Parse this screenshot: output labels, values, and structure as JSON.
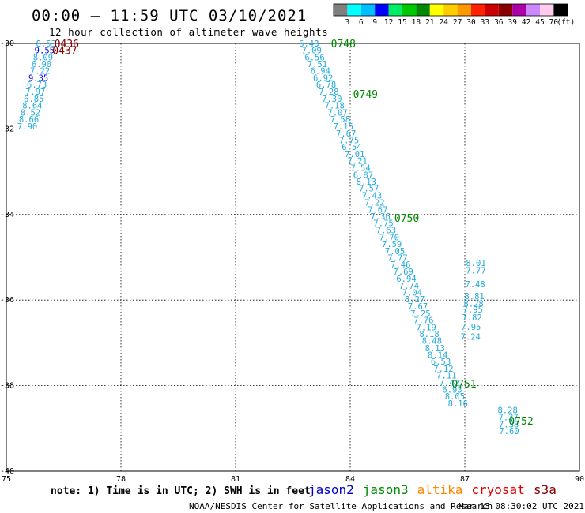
{
  "header": {
    "title": "00:00 – 11:59 UTC 03/10/2021",
    "subtitle": "12 hour collection of altimeter wave heights"
  },
  "footer": {
    "note": "note: 1) Time is in UTC; 2) SWH is in feet",
    "credit": "NOAA/NESDIS Center for Satellite Applications and Research",
    "generated": "Mar 13 08:30:02 UTC 2021"
  },
  "missions": [
    {
      "name": "jason2",
      "color": "#0000cc"
    },
    {
      "name": "jason3",
      "color": "#008800"
    },
    {
      "name": "altika",
      "color": "#ff8800"
    },
    {
      "name": "cryosat",
      "color": "#dd0000"
    },
    {
      "name": "s3a",
      "color": "#880000"
    }
  ],
  "colorbar": {
    "labels": [
      "3",
      "6",
      "9",
      "12",
      "15",
      "18",
      "21",
      "24",
      "27",
      "30",
      "33",
      "36",
      "39",
      "42",
      "45",
      "70"
    ],
    "unit": "(ft)",
    "colors": [
      "#7f7f7f",
      "#00ffff",
      "#00bfff",
      "#0000ff",
      "#00ee66",
      "#00c800",
      "#008800",
      "#ffff00",
      "#ffcc00",
      "#ff9900",
      "#ff2200",
      "#cc0000",
      "#880000",
      "#aa00aa",
      "#cc88ff",
      "#ffccee",
      "#000000"
    ]
  },
  "chart_data": {
    "type": "scatter",
    "title": "00:00 – 11:59 UTC 03/10/2021",
    "subtitle": "12 hour collection of altimeter wave heights",
    "xlim": [
      75,
      90
    ],
    "ylim": [
      -40,
      -30
    ],
    "xticks": [
      "75",
      "78",
      "81",
      "84",
      "87",
      "90"
    ],
    "yticks": [
      "-30",
      "-32",
      "-34",
      "-36",
      "-38",
      "-40"
    ],
    "grid": true,
    "value_unit": "ft",
    "tracks": [
      {
        "values": [
          {
            "x": 76.04,
            "y": -30.0,
            "v": "8.53",
            "c": "#22aadd"
          },
          {
            "x": 76.0,
            "y": -30.16,
            "v": "9.55",
            "c": "#0000ff"
          },
          {
            "x": 75.96,
            "y": -30.32,
            "v": "8.09",
            "c": "#22aadd"
          },
          {
            "x": 75.92,
            "y": -30.48,
            "v": "6.90",
            "c": "#22aadd"
          },
          {
            "x": 75.88,
            "y": -30.64,
            "v": "7.22",
            "c": "#22aadd"
          },
          {
            "x": 75.84,
            "y": -30.8,
            "v": "9.35",
            "c": "#0000ff"
          },
          {
            "x": 75.8,
            "y": -30.96,
            "v": "6.73",
            "c": "#22aadd"
          },
          {
            "x": 75.76,
            "y": -31.13,
            "v": "7.97",
            "c": "#22aadd"
          },
          {
            "x": 75.72,
            "y": -31.29,
            "v": "6.85",
            "c": "#22aadd"
          },
          {
            "x": 75.68,
            "y": -31.45,
            "v": "8.64",
            "c": "#22aadd"
          },
          {
            "x": 75.63,
            "y": -31.61,
            "v": "8.52",
            "c": "#22aadd"
          },
          {
            "x": 75.59,
            "y": -31.77,
            "v": "8.66",
            "c": "#22aadd"
          },
          {
            "x": 75.55,
            "y": -31.94,
            "v": "7.90",
            "c": "#22aadd"
          }
        ],
        "times": [
          {
            "x": 76.58,
            "y": -30.0,
            "t": "0436",
            "c": "#880000"
          },
          {
            "x": 76.53,
            "y": -30.16,
            "t": "0437",
            "c": "#880000"
          }
        ]
      },
      {
        "values": [
          {
            "x": 82.92,
            "y": -30.0,
            "v": "6.48",
            "c": "#22aadd"
          },
          {
            "x": 82.99,
            "y": -30.16,
            "v": "7.09",
            "c": "#22aadd"
          },
          {
            "x": 83.07,
            "y": -30.32,
            "v": "6.56",
            "c": "#22aadd"
          },
          {
            "x": 83.14,
            "y": -30.48,
            "v": "7.51",
            "c": "#22aadd"
          },
          {
            "x": 83.22,
            "y": -30.64,
            "v": "6.94",
            "c": "#22aadd"
          },
          {
            "x": 83.29,
            "y": -30.8,
            "v": "6.92",
            "c": "#22aadd"
          },
          {
            "x": 83.37,
            "y": -30.96,
            "v": "6.78",
            "c": "#22aadd"
          },
          {
            "x": 83.44,
            "y": -31.13,
            "v": "7.28",
            "c": "#22aadd"
          },
          {
            "x": 83.52,
            "y": -31.29,
            "v": "7.30",
            "c": "#22aadd"
          },
          {
            "x": 83.59,
            "y": -31.45,
            "v": "7.18",
            "c": "#22aadd"
          },
          {
            "x": 83.67,
            "y": -31.61,
            "v": "7.07",
            "c": "#22aadd"
          },
          {
            "x": 83.74,
            "y": -31.77,
            "v": "7.58",
            "c": "#22aadd"
          },
          {
            "x": 83.82,
            "y": -31.94,
            "v": "7.15",
            "c": "#22aadd"
          },
          {
            "x": 83.89,
            "y": -32.1,
            "v": "7.67",
            "c": "#22aadd"
          },
          {
            "x": 83.97,
            "y": -32.26,
            "v": "7.75",
            "c": "#22aadd"
          },
          {
            "x": 84.04,
            "y": -32.42,
            "v": "6.54",
            "c": "#22aadd"
          },
          {
            "x": 84.12,
            "y": -32.58,
            "v": "7.01",
            "c": "#22aadd"
          },
          {
            "x": 84.19,
            "y": -32.74,
            "v": "7.21",
            "c": "#22aadd"
          },
          {
            "x": 84.27,
            "y": -32.91,
            "v": "7.54",
            "c": "#22aadd"
          },
          {
            "x": 84.34,
            "y": -33.07,
            "v": "6.87",
            "c": "#22aadd"
          },
          {
            "x": 84.42,
            "y": -33.23,
            "v": "8.13",
            "c": "#22aadd"
          },
          {
            "x": 84.49,
            "y": -33.39,
            "v": "7.57",
            "c": "#22aadd"
          },
          {
            "x": 84.57,
            "y": -33.55,
            "v": "7.43",
            "c": "#22aadd"
          },
          {
            "x": 84.64,
            "y": -33.72,
            "v": "7.22",
            "c": "#22aadd"
          },
          {
            "x": 84.72,
            "y": -33.88,
            "v": "7.67",
            "c": "#22aadd"
          },
          {
            "x": 84.79,
            "y": -34.04,
            "v": "7.36",
            "c": "#22aadd"
          },
          {
            "x": 84.87,
            "y": -34.2,
            "v": "7.75",
            "c": "#22aadd"
          },
          {
            "x": 84.94,
            "y": -34.36,
            "v": "7.63",
            "c": "#22aadd"
          },
          {
            "x": 85.02,
            "y": -34.53,
            "v": "7.70",
            "c": "#22aadd"
          },
          {
            "x": 85.09,
            "y": -34.69,
            "v": "7.59",
            "c": "#22aadd"
          },
          {
            "x": 85.17,
            "y": -34.85,
            "v": "7.05",
            "c": "#22aadd"
          },
          {
            "x": 85.24,
            "y": -35.01,
            "v": "7.77",
            "c": "#22aadd"
          },
          {
            "x": 85.32,
            "y": -35.17,
            "v": "7.46",
            "c": "#22aadd"
          },
          {
            "x": 85.39,
            "y": -35.33,
            "v": "7.69",
            "c": "#22aadd"
          },
          {
            "x": 85.47,
            "y": -35.5,
            "v": "6.94",
            "c": "#22aadd"
          },
          {
            "x": 85.54,
            "y": -35.66,
            "v": "7.74",
            "c": "#22aadd"
          },
          {
            "x": 85.62,
            "y": -35.82,
            "v": "7.04",
            "c": "#22aadd"
          },
          {
            "x": 85.69,
            "y": -35.98,
            "v": "8.27",
            "c": "#22aadd"
          },
          {
            "x": 85.77,
            "y": -36.14,
            "v": "7.67",
            "c": "#22aadd"
          },
          {
            "x": 85.84,
            "y": -36.31,
            "v": "7.25",
            "c": "#22aadd"
          },
          {
            "x": 85.92,
            "y": -36.47,
            "v": "7.76",
            "c": "#22aadd"
          },
          {
            "x": 85.99,
            "y": -36.63,
            "v": "7.19",
            "c": "#22aadd"
          },
          {
            "x": 86.07,
            "y": -36.79,
            "v": "8.18",
            "c": "#22aadd"
          },
          {
            "x": 86.14,
            "y": -36.95,
            "v": "8.48",
            "c": "#22aadd"
          },
          {
            "x": 86.22,
            "y": -37.12,
            "v": "8.13",
            "c": "#22aadd"
          },
          {
            "x": 86.29,
            "y": -37.28,
            "v": "8.14",
            "c": "#22aadd"
          },
          {
            "x": 86.37,
            "y": -37.44,
            "v": "6.53",
            "c": "#22aadd"
          },
          {
            "x": 86.44,
            "y": -37.6,
            "v": "7.12",
            "c": "#22aadd"
          },
          {
            "x": 86.52,
            "y": -37.76,
            "v": "7.11",
            "c": "#22aadd"
          },
          {
            "x": 86.59,
            "y": -37.93,
            "v": "7.42",
            "c": "#22aadd"
          },
          {
            "x": 86.67,
            "y": -38.09,
            "v": "6.93",
            "c": "#22aadd"
          },
          {
            "x": 86.74,
            "y": -38.25,
            "v": "8.05",
            "c": "#22aadd"
          },
          {
            "x": 86.82,
            "y": -38.41,
            "v": "8.16",
            "c": "#22aadd"
          }
        ],
        "times": [
          {
            "x": 83.82,
            "y": -30.0,
            "t": "0748",
            "c": "#008800"
          },
          {
            "x": 84.4,
            "y": -31.18,
            "t": "0749",
            "c": "#008800"
          },
          {
            "x": 85.48,
            "y": -34.08,
            "t": "0750",
            "c": "#008800"
          },
          {
            "x": 86.98,
            "y": -37.95,
            "t": "0751",
            "c": "#008800"
          }
        ]
      },
      {
        "values": [
          {
            "x": 88.12,
            "y": -38.57,
            "v": "8.28",
            "c": "#22aadd"
          },
          {
            "x": 88.14,
            "y": -38.74,
            "v": "7.37",
            "c": "#22aadd"
          },
          {
            "x": 88.15,
            "y": -38.9,
            "v": "7.38",
            "c": "#22aadd"
          },
          {
            "x": 88.16,
            "y": -39.06,
            "v": "7.60",
            "c": "#22aadd"
          }
        ],
        "times": [
          {
            "x": 88.47,
            "y": -38.82,
            "t": "0752",
            "c": "#008800"
          }
        ]
      },
      {
        "values": [
          {
            "x": 87.29,
            "y": -35.13,
            "v": "8.01",
            "c": "#22aadd"
          },
          {
            "x": 87.29,
            "y": -35.3,
            "v": "7.77",
            "c": "#22aadd"
          },
          {
            "x": 87.27,
            "y": -35.63,
            "v": "7.48",
            "c": "#22aadd"
          },
          {
            "x": 87.25,
            "y": -35.9,
            "v": "8.81",
            "c": "#22aadd"
          },
          {
            "x": 87.23,
            "y": -36.08,
            "v": "8.28",
            "c": "#22aadd"
          },
          {
            "x": 87.21,
            "y": -36.22,
            "v": "7.95",
            "c": "#22aadd"
          },
          {
            "x": 87.19,
            "y": -36.4,
            "v": "7.82",
            "c": "#22aadd"
          },
          {
            "x": 87.16,
            "y": -36.62,
            "v": "7.95",
            "c": "#22aadd"
          },
          {
            "x": 87.15,
            "y": -36.85,
            "v": "7.24",
            "c": "#22aadd"
          }
        ]
      }
    ]
  }
}
